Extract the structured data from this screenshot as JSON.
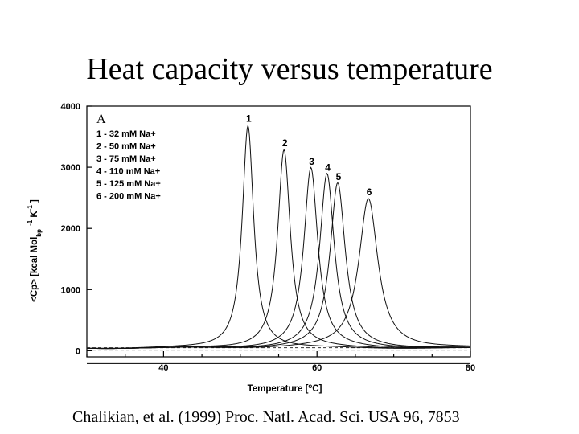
{
  "slide": {
    "title": "Heat capacity versus temperature",
    "citation": "Chalikian, et al. (1999) Proc. Natl. Acad. Sci. USA 96, 7853"
  },
  "chart_data": {
    "type": "line",
    "panel_label": "A",
    "xlabel": "Temperature [oC]",
    "xlabel_parts": {
      "pre": "Temperature [",
      "sup": "o",
      "post": "C]"
    },
    "ylabel": "<Cp> [kcal Mol bp -1 K -1 ]",
    "ylabel_parts": {
      "main": "<Cp> [kcal Mol",
      "sub": "bp",
      "sup1": "-1",
      "k": " K",
      "sup2": "-1",
      "end": " ]"
    },
    "xlim": [
      30,
      80
    ],
    "ylim": [
      -100,
      4000
    ],
    "x_ticks": [
      40,
      60,
      80
    ],
    "y_ticks": [
      0,
      1000,
      2000,
      3000,
      4000
    ],
    "grid": false,
    "legend_position": "top-left",
    "legend": [
      "1 - 32 mM Na+",
      "2 - 50 mM Na+",
      "3 - 75 mM Na+",
      "4 - 110 mM Na+",
      "5 - 125 mM Na+",
      "6 - 200 mM Na+"
    ],
    "series": [
      {
        "name": "1",
        "label": "1",
        "peak_x": 51.0,
        "peak_y": 3650,
        "width": 0.9
      },
      {
        "name": "2",
        "label": "2",
        "peak_x": 55.7,
        "peak_y": 3250,
        "width": 1.0
      },
      {
        "name": "3",
        "label": "3",
        "peak_x": 59.2,
        "peak_y": 2950,
        "width": 1.1
      },
      {
        "name": "4",
        "label": "4",
        "peak_x": 61.3,
        "peak_y": 2850,
        "width": 1.15
      },
      {
        "name": "5",
        "label": "5",
        "peak_x": 62.7,
        "peak_y": 2700,
        "width": 1.2
      },
      {
        "name": "6",
        "label": "6",
        "peak_x": 66.7,
        "peak_y": 2450,
        "width": 1.5
      }
    ],
    "dashed_baselines": [
      50,
      10
    ]
  }
}
